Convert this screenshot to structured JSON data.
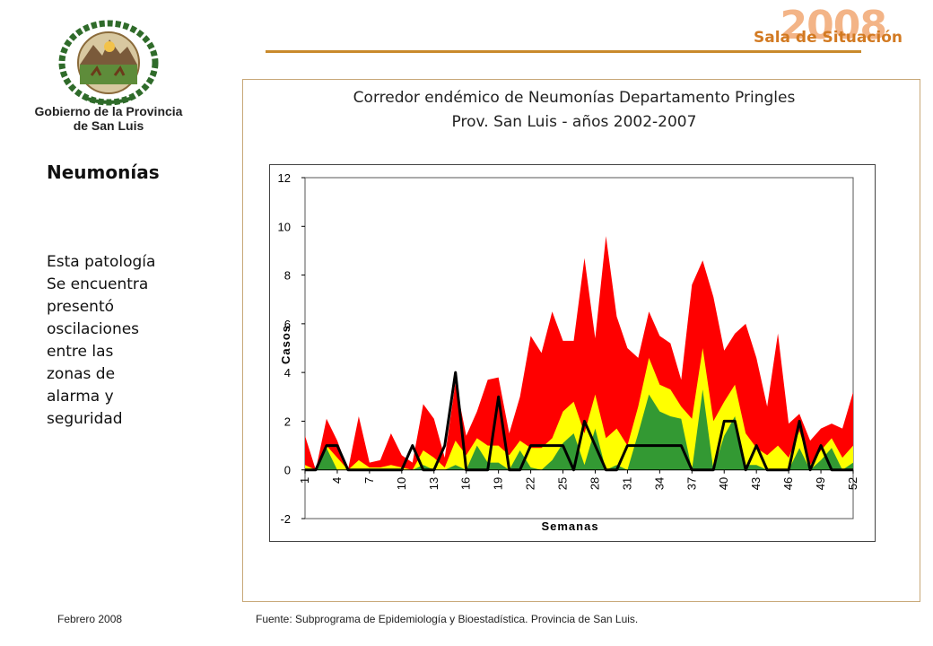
{
  "header": {
    "org_line1": "Gobierno de la Provincia",
    "org_line2": "de San Luis",
    "brand_year": "2008",
    "brand_name": "Sala de Situación"
  },
  "sidebar": {
    "section_title": "Neumonías",
    "text_lines": [
      "Esta patología",
      "Se encuentra",
      "presentó",
      "oscilaciones",
      "entre las",
      "zonas de",
      "alarma y",
      "seguridad"
    ]
  },
  "chart_title": {
    "line1": "Corredor endémico de Neumonías Departamento Pringles",
    "line2": "Prov. San Luis - años 2002-2007"
  },
  "footer": {
    "date": "Febrero 2008",
    "source": "Fuente: Subprograma de Epidemiología y Bioestadística. Provincia de San Luis."
  },
  "colors": {
    "alarm": "#ff0000",
    "security": "#ffff00",
    "success": "#339933",
    "current": "#000000",
    "brand": "#d27a22"
  },
  "chart_data": {
    "type": "area",
    "xlabel": "Semanas",
    "ylabel": "Casos",
    "ylim": [
      -2,
      12
    ],
    "yticks": [
      -2,
      0,
      2,
      4,
      6,
      8,
      10,
      12
    ],
    "xticks": [
      1,
      4,
      7,
      10,
      13,
      16,
      19,
      22,
      25,
      28,
      31,
      34,
      37,
      40,
      43,
      46,
      49,
      52
    ],
    "x": [
      1,
      2,
      3,
      4,
      5,
      6,
      7,
      8,
      9,
      10,
      11,
      12,
      13,
      14,
      15,
      16,
      17,
      18,
      19,
      20,
      21,
      22,
      23,
      24,
      25,
      26,
      27,
      28,
      29,
      30,
      31,
      32,
      33,
      34,
      35,
      36,
      37,
      38,
      39,
      40,
      41,
      42,
      43,
      44,
      45,
      46,
      47,
      48,
      49,
      50,
      51,
      52
    ],
    "series": [
      {
        "values": [
          1.4,
          0.0,
          2.1,
          1.2,
          0.0,
          2.2,
          0.3,
          0.4,
          1.5,
          0.6,
          0.3,
          2.7,
          2.1,
          0.5,
          3.6,
          1.4,
          2.4,
          3.7,
          3.8,
          1.5,
          3.0,
          5.5,
          4.8,
          6.5,
          5.3,
          5.3,
          8.7,
          5.4,
          9.6,
          6.3,
          5.0,
          4.6,
          6.5,
          5.5,
          5.2,
          3.7,
          7.6,
          8.6,
          7.1,
          4.9,
          5.6,
          6.0,
          4.6,
          2.6,
          5.6,
          1.9,
          2.3,
          1.2,
          1.7,
          1.9,
          1.7,
          3.2
        ]
      },
      {
        "values": [
          0.2,
          0.0,
          1.0,
          0.5,
          0.0,
          0.4,
          0.1,
          0.1,
          0.2,
          0.1,
          0.0,
          0.8,
          0.5,
          0.1,
          1.2,
          0.6,
          1.3,
          1.0,
          1.0,
          0.6,
          1.2,
          0.9,
          0.9,
          1.3,
          2.4,
          2.8,
          1.5,
          3.1,
          1.3,
          1.7,
          1.0,
          2.6,
          4.6,
          3.5,
          3.3,
          2.6,
          2.1,
          5.0,
          2.0,
          2.8,
          3.5,
          1.5,
          0.9,
          0.6,
          1.0,
          0.5,
          1.6,
          0.2,
          0.8,
          1.3,
          0.5,
          1.0
        ]
      },
      {
        "values": [
          0.0,
          0.0,
          0.9,
          0.0,
          0.0,
          0.0,
          0.0,
          0.0,
          0.0,
          0.0,
          0.0,
          0.2,
          0.0,
          0.0,
          0.2,
          0.0,
          1.0,
          0.3,
          0.3,
          0.0,
          0.8,
          0.1,
          0.0,
          0.4,
          1.1,
          1.5,
          0.2,
          1.7,
          0.0,
          0.2,
          0.0,
          1.5,
          3.1,
          2.4,
          2.2,
          2.1,
          0.0,
          3.3,
          0.0,
          1.4,
          2.2,
          0.2,
          0.2,
          0.0,
          0.0,
          0.0,
          0.9,
          0.0,
          0.4,
          0.9,
          0.0,
          0.3
        ]
      },
      {
        "values": [
          0,
          0,
          1,
          1,
          0,
          0,
          0,
          0,
          0,
          0,
          1,
          0,
          0,
          1,
          4,
          0,
          0,
          0,
          3,
          0,
          0,
          1,
          1,
          1,
          1,
          0,
          2,
          1,
          0,
          0,
          1,
          1,
          1,
          1,
          1,
          1,
          0,
          0,
          0,
          2,
          2,
          0,
          1,
          0,
          0,
          0,
          2,
          0,
          1,
          0,
          0,
          0
        ]
      }
    ]
  }
}
